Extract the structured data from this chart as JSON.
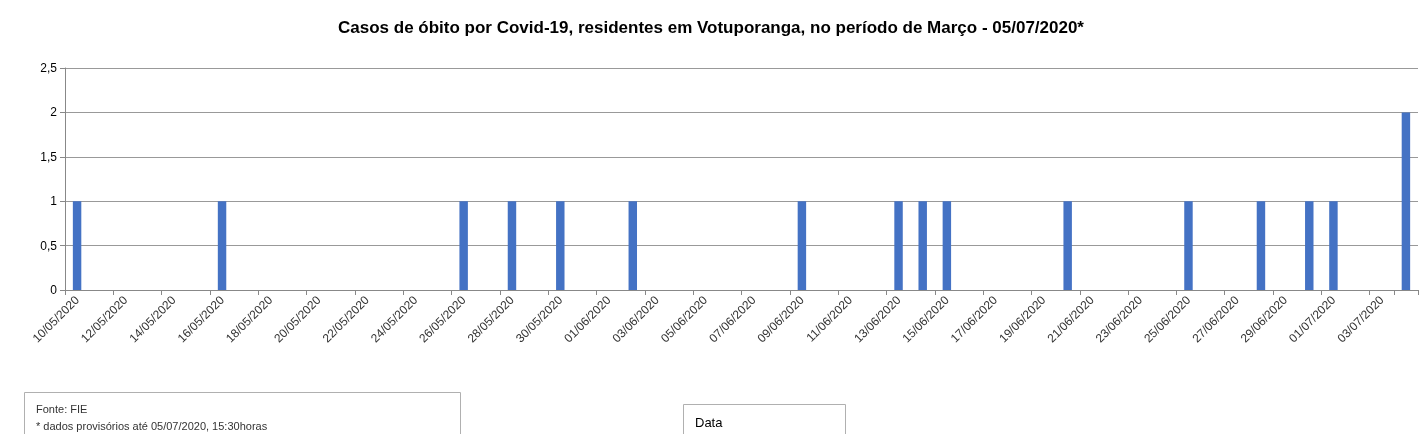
{
  "chart_data": {
    "type": "bar",
    "title": "Casos de óbito por Covid-19, residentes em Votuporanga, no período de Março - 05/07/2020*",
    "categories": [
      "10/05/2020",
      null,
      "12/05/2020",
      null,
      "14/05/2020",
      null,
      "16/05/2020",
      null,
      "18/05/2020",
      null,
      "20/05/2020",
      null,
      "22/05/2020",
      null,
      "24/05/2020",
      null,
      "26/05/2020",
      null,
      "28/05/2020",
      null,
      "30/05/2020",
      null,
      "01/06/2020",
      null,
      "03/06/2020",
      null,
      "05/06/2020",
      null,
      "07/06/2020",
      null,
      "09/06/2020",
      null,
      "11/06/2020",
      null,
      "13/06/2020",
      null,
      "15/06/2020",
      null,
      "17/06/2020",
      null,
      "19/06/2020",
      null,
      "21/06/2020",
      null,
      "23/06/2020",
      null,
      "25/06/2020",
      null,
      "27/06/2020",
      null,
      "29/06/2020",
      null,
      "01/07/2020",
      null,
      "03/07/2020",
      null
    ],
    "values": [
      1,
      0,
      0,
      0,
      0,
      0,
      1,
      0,
      0,
      0,
      0,
      0,
      0,
      0,
      0,
      0,
      1,
      0,
      1,
      0,
      1,
      0,
      0,
      1,
      0,
      0,
      0,
      0,
      0,
      0,
      1,
      0,
      0,
      0,
      1,
      1,
      1,
      0,
      0,
      0,
      0,
      1,
      0,
      0,
      0,
      0,
      1,
      0,
      0,
      1,
      0,
      1,
      1,
      0,
      0,
      2
    ],
    "color": "#4472c4",
    "ylim": [
      0,
      2.5
    ],
    "yticks": [
      {
        "value": 0,
        "label": "0"
      },
      {
        "value": 0.5,
        "label": "0,5"
      },
      {
        "value": 1,
        "label": "1"
      },
      {
        "value": 1.5,
        "label": "1,5"
      },
      {
        "value": 2,
        "label": "2"
      },
      {
        "value": 2.5,
        "label": "2,5"
      }
    ],
    "grid": "y",
    "annotations": [
      "Fonte: FIE",
      "* dados provisórios até 05/07/2020, 15:30horas",
      "Data"
    ]
  }
}
